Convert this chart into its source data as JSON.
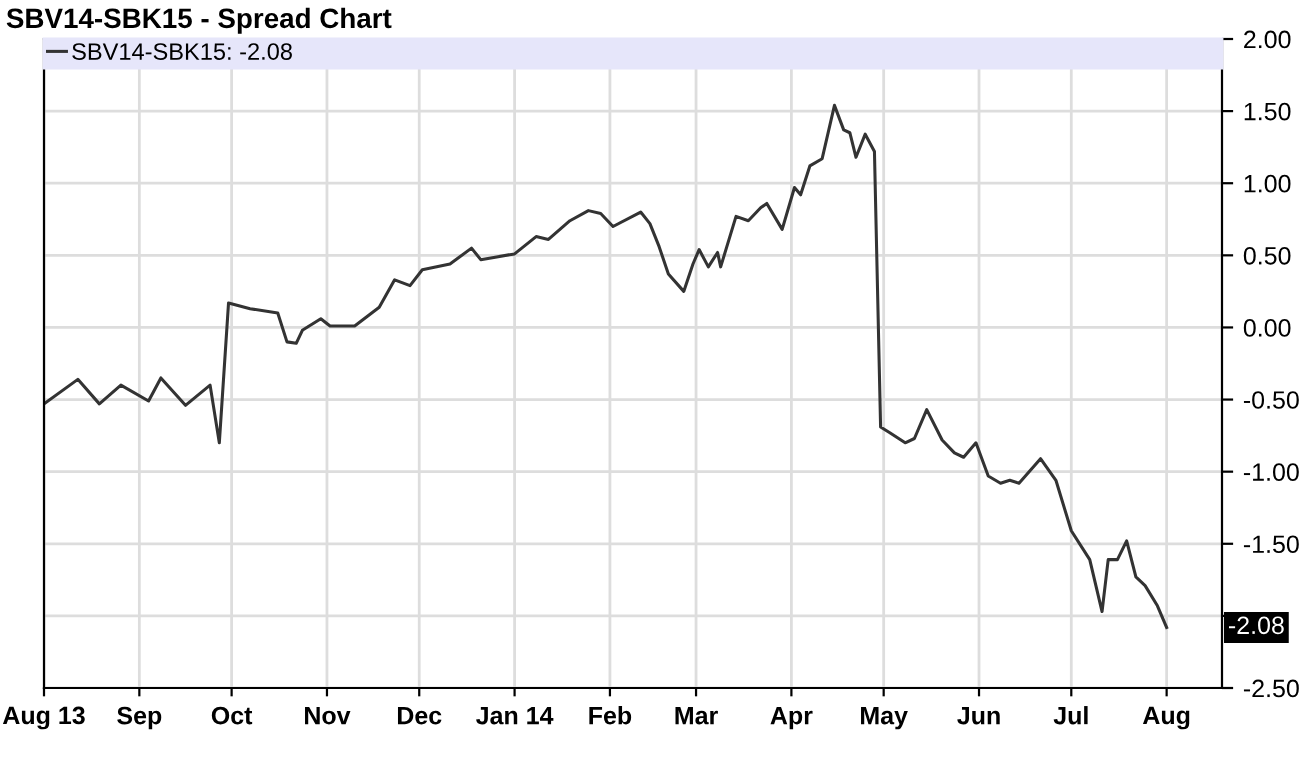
{
  "chart_data": {
    "type": "line",
    "title": "SBV14-SBK15 - Spread Chart",
    "x": [
      "2013-08-01",
      "2013-08-12",
      "2013-08-19",
      "2013-08-26",
      "2013-09-04",
      "2013-09-08",
      "2013-09-16",
      "2013-09-24",
      "2013-09-27",
      "2013-09-30",
      "2013-10-07",
      "2013-10-16",
      "2013-10-19",
      "2013-10-22",
      "2013-10-24",
      "2013-10-30",
      "2013-11-02",
      "2013-11-10",
      "2013-11-18",
      "2013-11-23",
      "2013-11-28",
      "2013-12-02",
      "2013-12-11",
      "2013-12-18",
      "2013-12-21",
      "2014-01-01",
      "2014-01-08",
      "2014-01-12",
      "2014-01-19",
      "2014-01-25",
      "2014-01-29",
      "2014-02-02",
      "2014-02-11",
      "2014-02-14",
      "2014-02-17",
      "2014-02-20",
      "2014-02-25",
      "2014-02-28",
      "2014-03-02",
      "2014-03-05",
      "2014-03-08",
      "2014-03-09",
      "2014-03-14",
      "2014-03-18",
      "2014-03-22",
      "2014-03-24",
      "2014-03-29",
      "2014-04-02",
      "2014-04-04",
      "2014-04-07",
      "2014-04-11",
      "2014-04-15",
      "2014-04-18",
      "2014-04-20",
      "2014-04-22",
      "2014-04-25",
      "2014-04-28",
      "2014-04-30",
      "2014-05-03",
      "2014-05-08",
      "2014-05-11",
      "2014-05-15",
      "2014-05-20",
      "2014-05-24",
      "2014-05-27",
      "2014-05-31",
      "2014-06-04",
      "2014-06-08",
      "2014-06-11",
      "2014-06-14",
      "2014-06-21",
      "2014-06-26",
      "2014-07-01",
      "2014-07-07",
      "2014-07-11",
      "2014-07-13",
      "2014-07-16",
      "2014-07-19",
      "2014-07-22",
      "2014-07-25",
      "2014-07-29",
      "2014-08-01"
    ],
    "series": [
      {
        "name": "SBV14-SBK15: -2.08",
        "color": "#333333",
        "values": [
          -0.53,
          -0.36,
          -0.53,
          -0.4,
          -0.51,
          -0.35,
          -0.54,
          -0.4,
          -0.8,
          0.17,
          0.13,
          0.1,
          -0.1,
          -0.11,
          -0.02,
          0.06,
          0.01,
          0.01,
          0.14,
          0.33,
          0.29,
          0.4,
          0.44,
          0.55,
          0.47,
          0.51,
          0.63,
          0.61,
          0.74,
          0.81,
          0.79,
          0.7,
          0.8,
          0.72,
          0.56,
          0.37,
          0.25,
          0.44,
          0.54,
          0.42,
          0.52,
          0.42,
          0.77,
          0.74,
          0.83,
          0.86,
          0.68,
          0.97,
          0.92,
          1.12,
          1.17,
          1.54,
          1.37,
          1.35,
          1.18,
          1.34,
          1.22,
          -0.69,
          -0.73,
          -0.8,
          -0.77,
          -0.57,
          -0.78,
          -0.87,
          -0.9,
          -0.8,
          -1.03,
          -1.08,
          -1.06,
          -1.08,
          -0.91,
          -1.06,
          -1.41,
          -1.61,
          -1.97,
          -1.61,
          -1.61,
          -1.48,
          -1.73,
          -1.79,
          -1.93,
          -2.08
        ]
      }
    ],
    "xlim": [
      "2013-08-01",
      "2014-08-19"
    ],
    "xticks": [
      {
        "value": "2013-08-01",
        "label": "Aug 13"
      },
      {
        "value": "2013-09-01",
        "label": "Sep"
      },
      {
        "value": "2013-10-01",
        "label": "Oct"
      },
      {
        "value": "2013-11-01",
        "label": "Nov"
      },
      {
        "value": "2013-12-01",
        "label": "Dec"
      },
      {
        "value": "2014-01-01",
        "label": "Jan 14"
      },
      {
        "value": "2014-02-01",
        "label": "Feb"
      },
      {
        "value": "2014-03-01",
        "label": "Mar"
      },
      {
        "value": "2014-04-01",
        "label": "Apr"
      },
      {
        "value": "2014-05-01",
        "label": "May"
      },
      {
        "value": "2014-06-01",
        "label": "Jun"
      },
      {
        "value": "2014-07-01",
        "label": "Jul"
      },
      {
        "value": "2014-08-01",
        "label": "Aug"
      }
    ],
    "ylim": [
      -2.5,
      2.0
    ],
    "yticks": [
      {
        "value": -2.5,
        "label": "-2.50"
      },
      {
        "value": -2.0,
        "label": null
      },
      {
        "value": -1.5,
        "label": "-1.50"
      },
      {
        "value": -1.0,
        "label": "-1.00"
      },
      {
        "value": -0.5,
        "label": "-0.50"
      },
      {
        "value": 0,
        "label": "0.00"
      },
      {
        "value": 0.5,
        "label": "0.50"
      },
      {
        "value": 1.0,
        "label": "1.00"
      },
      {
        "value": 1.5,
        "label": "1.50"
      },
      {
        "value": 2.0,
        "label": "2.00"
      }
    ],
    "annotations": [
      {
        "text": "-2.08",
        "x": "2014-08-01",
        "y": -2.08
      }
    ],
    "grid": true,
    "legend": "top left",
    "marker": "none",
    "line_style": "solid"
  }
}
